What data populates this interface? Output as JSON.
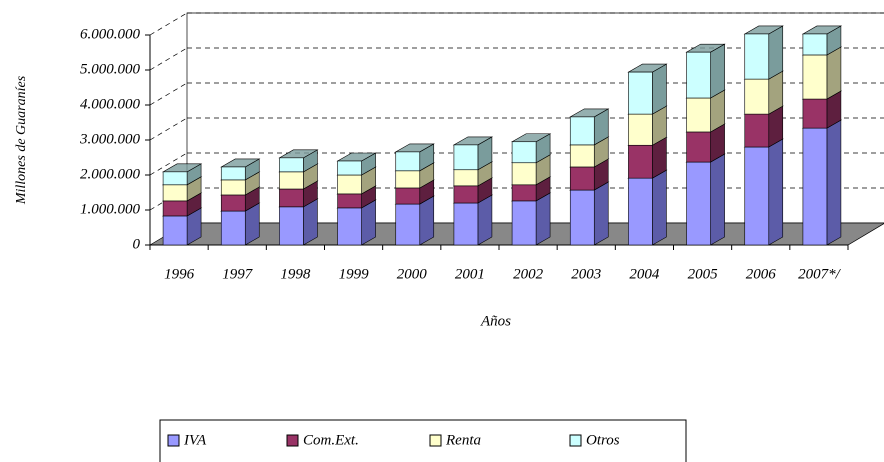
{
  "chart_data": {
    "type": "bar3d_stacked",
    "y_label": "Millones de Guaraníes",
    "x_label": "Años",
    "categories": [
      "1996",
      "1997",
      "1998",
      "1999",
      "2000",
      "2001",
      "2002",
      "2003",
      "2004",
      "2005",
      "2006",
      "2007*/"
    ],
    "series": [
      {
        "name": "IVA",
        "color": "#9999ff",
        "side": "#5c5ca8",
        "values": [
          830000,
          970000,
          1090000,
          1060000,
          1170000,
          1200000,
          1260000,
          1570000,
          1910000,
          2370000,
          2800000,
          3340000
        ]
      },
      {
        "name": "Com.Ext.",
        "color": "#993366",
        "side": "#5e1f3f",
        "values": [
          430000,
          460000,
          510000,
          400000,
          460000,
          490000,
          460000,
          660000,
          940000,
          860000,
          940000,
          830000
        ]
      },
      {
        "name": "Renta",
        "color": "#ffffcc",
        "side": "#a3a37e",
        "values": [
          460000,
          430000,
          490000,
          540000,
          490000,
          460000,
          630000,
          630000,
          890000,
          970000,
          1000000,
          1260000
        ]
      },
      {
        "name": "Otros",
        "color": "#ccffff",
        "side": "#7a9c9c",
        "values": [
          370000,
          370000,
          400000,
          400000,
          540000,
          710000,
          600000,
          800000,
          1200000,
          1310000,
          1290000,
          600000
        ]
      }
    ],
    "ylim": [
      0,
      6000000
    ],
    "yticks": [
      0,
      {
        "value": 1000000,
        "label": "1.000.000"
      },
      {
        "value": 2000000,
        "label": "2.000.000"
      },
      {
        "value": 3000000,
        "label": "3.000.000"
      },
      {
        "value": 4000000,
        "label": "4.000.000"
      },
      {
        "value": 5000000,
        "label": "5.000.000"
      },
      {
        "value": 6000000,
        "label": "6.000.000"
      }
    ],
    "grid": true,
    "legend": "bottom"
  }
}
